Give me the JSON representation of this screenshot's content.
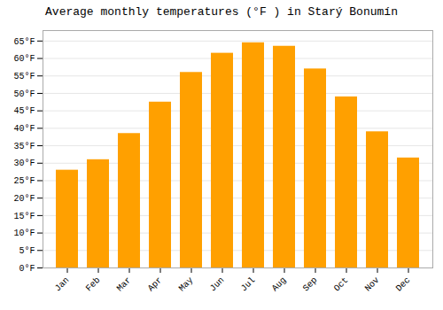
{
  "chart_data": {
    "type": "bar",
    "title": "Average monthly temperatures (°F ) in Starý Bonumín",
    "categories": [
      "Jan",
      "Feb",
      "Mar",
      "Apr",
      "May",
      "Jun",
      "Jul",
      "Aug",
      "Sep",
      "Oct",
      "Nov",
      "Dec"
    ],
    "values": [
      28.0,
      31.0,
      38.5,
      47.5,
      56.0,
      61.5,
      64.5,
      63.5,
      57.0,
      49.0,
      39.0,
      31.5
    ],
    "color": "#FFA000",
    "ylim": [
      0,
      68
    ],
    "yticks": [
      {
        "value": 0,
        "label": "0°F"
      },
      {
        "value": 5,
        "label": "5°F"
      },
      {
        "value": 10,
        "label": "10°F"
      },
      {
        "value": 15,
        "label": "15°F"
      },
      {
        "value": 20,
        "label": "20°F"
      },
      {
        "value": 25,
        "label": "25°F"
      },
      {
        "value": 30,
        "label": "30°F"
      },
      {
        "value": 35,
        "label": "35°F"
      },
      {
        "value": 40,
        "label": "40°F"
      },
      {
        "value": 45,
        "label": "45°F"
      },
      {
        "value": 50,
        "label": "50°F"
      },
      {
        "value": 55,
        "label": "55°F"
      },
      {
        "value": 60,
        "label": "60°F"
      },
      {
        "value": 65,
        "label": "65°F"
      }
    ],
    "grid": true
  }
}
